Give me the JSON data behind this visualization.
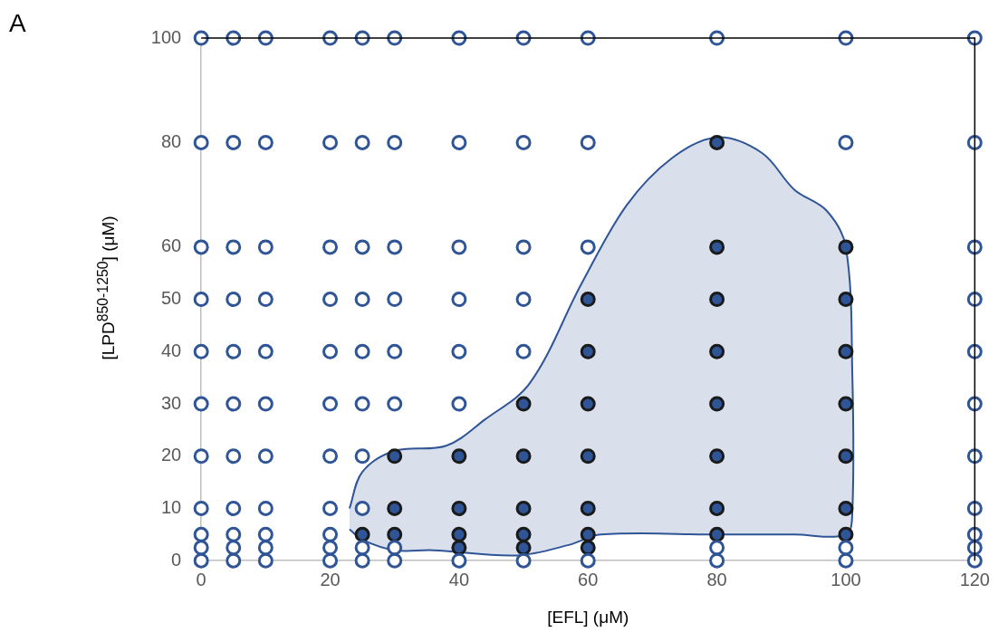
{
  "chart_data": {
    "type": "scatter",
    "title": "A",
    "xlabel": "[EFL] (μM)",
    "ylabel": "[LPD$^{850-1250}$] (μM)",
    "xlim": [
      0,
      120
    ],
    "xticks": [
      0,
      20,
      40,
      60,
      80,
      100,
      120
    ],
    "ylim": [
      0,
      100
    ],
    "yticks": [
      0,
      10,
      20,
      30,
      40,
      50,
      60,
      80,
      100
    ],
    "marker": "circle",
    "series": [
      {
        "type": "area",
        "marker": "none",
        "color": "#2f5597",
        "x": [
          23,
          25,
          30,
          38,
          44,
          51,
          59,
          66,
          73,
          80,
          87,
          92,
          97,
          100,
          101,
          101,
          100,
          92,
          80,
          62,
          57,
          49,
          36,
          30,
          25,
          23
        ],
        "values": [
          10,
          17,
          21,
          22,
          27,
          34,
          53,
          68,
          77,
          81,
          78,
          71,
          67,
          60,
          36,
          9,
          5,
          5,
          5,
          5,
          3,
          1,
          2,
          2,
          4,
          6
        ]
      },
      {
        "color": "#2f5597",
        "x": [
          0,
          5,
          10,
          20,
          25,
          30,
          40,
          50,
          60,
          80,
          100,
          120,
          0,
          5,
          10,
          20,
          25,
          30,
          80,
          100,
          120,
          0,
          5,
          10,
          20,
          120,
          0,
          5,
          10,
          20,
          25,
          120,
          0,
          5,
          10,
          20,
          25,
          120,
          0,
          5,
          10,
          20,
          25,
          30,
          40,
          120,
          0,
          5,
          10,
          20,
          25,
          30,
          40,
          50,
          120,
          0,
          5,
          10,
          20,
          25,
          30,
          40,
          50,
          120,
          0,
          5,
          10,
          20,
          25,
          30,
          40,
          50,
          60,
          120,
          0,
          5,
          10,
          20,
          25,
          30,
          40,
          50,
          60,
          100,
          120,
          0,
          5,
          10,
          20,
          25,
          30,
          40,
          50,
          60,
          80,
          100,
          120
        ],
        "values": [
          0,
          0,
          0,
          0,
          0,
          0,
          0,
          0,
          0,
          0,
          0,
          0,
          2.5,
          2.5,
          2.5,
          2.5,
          2.5,
          2.5,
          2.5,
          2.5,
          2.5,
          5,
          5,
          5,
          5,
          5,
          10,
          10,
          10,
          10,
          10,
          10,
          20,
          20,
          20,
          20,
          20,
          20,
          30,
          30,
          30,
          30,
          30,
          30,
          30,
          30,
          40,
          40,
          40,
          40,
          40,
          40,
          40,
          40,
          40,
          50,
          50,
          50,
          50,
          50,
          50,
          50,
          50,
          50,
          60,
          60,
          60,
          60,
          60,
          60,
          60,
          60,
          60,
          60,
          80,
          80,
          80,
          80,
          80,
          80,
          80,
          80,
          80,
          80,
          80,
          100,
          100,
          100,
          100,
          100,
          100,
          100,
          100,
          100,
          100,
          100,
          100
        ]
      },
      {
        "color": "#2f5597",
        "x": [
          25,
          30,
          30,
          30,
          40,
          40,
          40,
          40,
          50,
          50,
          50,
          50,
          50,
          60,
          60,
          60,
          60,
          60,
          60,
          60,
          80,
          80,
          80,
          80,
          80,
          80,
          80,
          80,
          100,
          100,
          100,
          100,
          100,
          100,
          100
        ],
        "values": [
          5,
          5,
          10,
          20,
          2.5,
          5,
          10,
          20,
          2.5,
          5,
          10,
          20,
          30,
          2.5,
          5,
          10,
          20,
          30,
          40,
          50,
          5,
          10,
          20,
          30,
          40,
          50,
          60,
          80,
          5,
          10,
          20,
          30,
          40,
          50,
          60
        ]
      }
    ]
  }
}
